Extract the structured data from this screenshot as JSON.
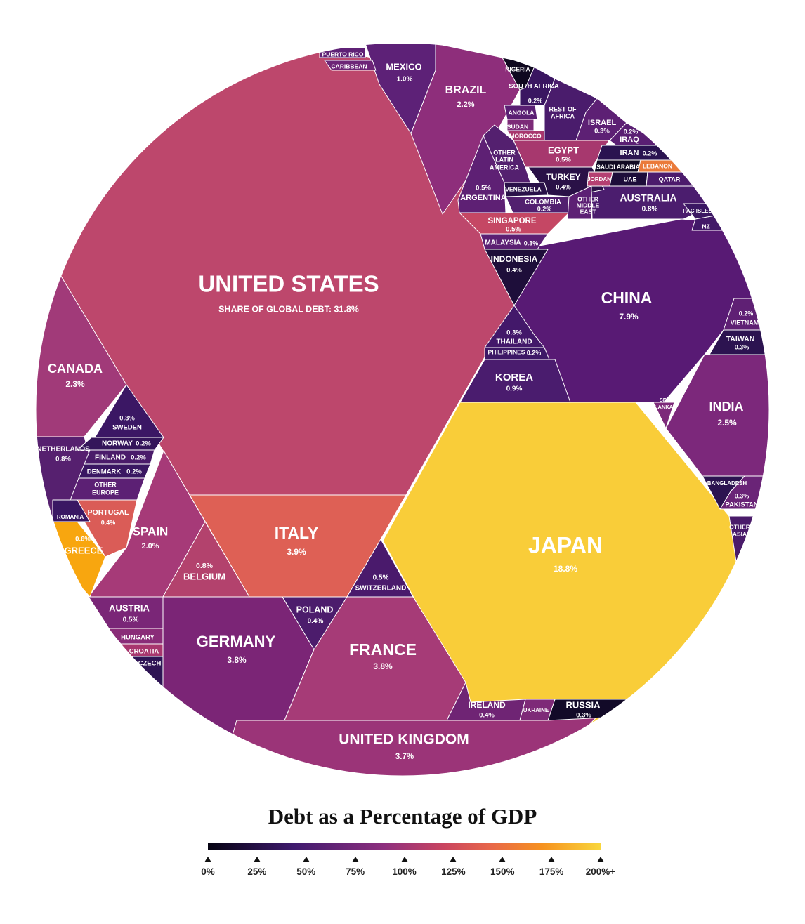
{
  "chart_data": {
    "type": "voronoi_treemap",
    "title": "Debt as a Percentage of GDP",
    "size_measure": "Share of global debt",
    "color_measure": "Debt as a percentage of GDP",
    "legend": {
      "ticks": [
        "0%",
        "25%",
        "50%",
        "75%",
        "100%",
        "125%",
        "150%",
        "175%",
        "200%+"
      ],
      "colors": [
        "#050312",
        "#2f1656",
        "#58207a",
        "#8a2e7e",
        "#b33d6f",
        "#d5544f",
        "#ee7a35",
        "#f7a626",
        "#f9d63c"
      ]
    },
    "cells": [
      {
        "key": "us",
        "label": "UNITED STATES",
        "sublabel": "SHARE OF GLOBAL DEBT: 31.8%",
        "value": 31.8,
        "color": "#bd476c"
      },
      {
        "key": "jp",
        "label": "JAPAN",
        "value_label": "18.8%",
        "value": 18.8,
        "color": "#f9cd39"
      },
      {
        "key": "cn",
        "label": "CHINA",
        "value_label": "7.9%",
        "value": 7.9,
        "color": "#581a74"
      },
      {
        "key": "it",
        "label": "ITALY",
        "value_label": "3.9%",
        "value": 3.9,
        "color": "#de6055"
      },
      {
        "key": "de",
        "label": "GERMANY",
        "value_label": "3.8%",
        "value": 3.8,
        "color": "#7b2576"
      },
      {
        "key": "fr",
        "label": "FRANCE",
        "value_label": "3.8%",
        "value": 3.8,
        "color": "#a63b77"
      },
      {
        "key": "uk",
        "label": "UNITED KINGDOM",
        "value_label": "3.7%",
        "value": 3.7,
        "color": "#9b3478"
      },
      {
        "key": "in",
        "label": "INDIA",
        "value_label": "2.5%",
        "value": 2.5,
        "color": "#7c287b"
      },
      {
        "key": "ca",
        "label": "CANADA",
        "value_label": "2.3%",
        "value": 2.3,
        "color": "#a13a79"
      },
      {
        "key": "br",
        "label": "BRAZIL",
        "value_label": "2.2%",
        "value": 2.2,
        "color": "#8e2e7b"
      },
      {
        "key": "es",
        "label": "SPAIN",
        "value_label": "2.0%",
        "value": 2.0,
        "color": "#a63a78"
      },
      {
        "key": "mx",
        "label": "MEXICO",
        "value_label": "1.0%",
        "value": 1.0,
        "color": "#5d2177"
      },
      {
        "key": "kr",
        "label": "KOREA",
        "value_label": "0.9%",
        "value": 0.9,
        "color": "#4a1c6e"
      },
      {
        "key": "au",
        "label": "AUSTRALIA",
        "value_label": "0.8%",
        "value": 0.8,
        "color": "#4b1d6e"
      },
      {
        "key": "nl",
        "label": "NETHERLANDS",
        "value_label": "0.8%",
        "value": 0.8,
        "color": "#56206f"
      },
      {
        "key": "be",
        "label": "BELGIUM",
        "value_label": "0.8%",
        "value": 0.8,
        "color": "#b3426d"
      },
      {
        "key": "ch",
        "label": "SWITZERLAND",
        "value_label": "0.5%",
        "value": 0.5,
        "color": "#4a1a6c"
      },
      {
        "key": "at",
        "label": "AUSTRIA",
        "value_label": "0.5%",
        "value": 0.5,
        "color": "#7a2677"
      },
      {
        "key": "sg",
        "label": "SINGAPORE",
        "value_label": "0.5%",
        "value": 0.5,
        "color": "#c54764"
      },
      {
        "key": "eg",
        "label": "EGYPT",
        "value_label": "0.5%",
        "value": 0.5,
        "color": "#a7386e"
      },
      {
        "key": "ar",
        "label": "ARGENTINA",
        "value_label": "0.5%",
        "value": 0.5,
        "color": "#5e2074"
      },
      {
        "key": "pl",
        "label": "POLAND",
        "value_label": "0.4%",
        "value": 0.4,
        "color": "#4c1c6c"
      },
      {
        "key": "ie",
        "label": "IRELAND",
        "value_label": "0.4%",
        "value": 0.4,
        "color": "#6f2474"
      },
      {
        "key": "tr",
        "label": "TURKEY",
        "value_label": "0.4%",
        "value": 0.4,
        "color": "#2a1147"
      },
      {
        "key": "id",
        "label": "INDONESIA",
        "value_label": "0.4%",
        "value": 0.4,
        "color": "#1e0e3a"
      },
      {
        "key": "pt",
        "label": "PORTUGAL",
        "value_label": "0.4%",
        "value": 0.4,
        "color": "#da5c57"
      },
      {
        "key": "ru",
        "label": "RUSSIA",
        "value_label": "0.3%",
        "value": 0.3,
        "color": "#120a28"
      },
      {
        "key": "se",
        "label": "SWEDEN",
        "value_label": "0.3%",
        "value": 0.3,
        "color": "#3b1764"
      },
      {
        "key": "my",
        "label": "MALAYSIA",
        "value_label": "0.3%",
        "value": 0.3,
        "color": "#5c2073"
      },
      {
        "key": "th",
        "label": "THAILAND",
        "value_label": "0.3%",
        "value": 0.3,
        "color": "#43186a"
      },
      {
        "key": "il",
        "label": "ISRAEL",
        "value_label": "0.3%",
        "value": 0.3,
        "color": "#5d2074"
      },
      {
        "key": "tw",
        "label": "TAIWAN",
        "value_label": "0.3%",
        "value": 0.3,
        "color": "#2c1350"
      },
      {
        "key": "pk",
        "label": "PAKISTAN",
        "value_label": "0.3%",
        "value": 0.3,
        "color": "#6a2477"
      },
      {
        "key": "co",
        "label": "COLOMBIA",
        "value_label": "0.2%",
        "value": 0.2,
        "color": "#52206f"
      },
      {
        "key": "za",
        "label": "SOUTH AFRICA",
        "value_label": "0.2%",
        "value": 0.2,
        "color": "#3a1661"
      },
      {
        "key": "iq",
        "label": "IRAQ",
        "value_label": "0.2%",
        "value": 0.2,
        "color": "#5a1f73"
      },
      {
        "key": "ir",
        "label": "IRAN",
        "value_label": "0.2%",
        "value": 0.2,
        "color": "#2a1350"
      },
      {
        "key": "no",
        "label": "NORWAY",
        "value_label": "0.2%",
        "value": 0.2,
        "color": "#34155a"
      },
      {
        "key": "fi",
        "label": "FINLAND",
        "value_label": "0.2%",
        "value": 0.2,
        "color": "#4a1b6a"
      },
      {
        "key": "dk",
        "label": "DENMARK",
        "value_label": "0.2%",
        "value": 0.2,
        "color": "#3a1762"
      },
      {
        "key": "ph",
        "label": "PHILIPPINES",
        "value_label": "0.2%",
        "value": 0.2,
        "color": "#3d1866"
      },
      {
        "key": "vn",
        "label": "VIETNAM",
        "value_label": "0.2%",
        "value": 0.2,
        "color": "#5f2074"
      },
      {
        "key": "gr",
        "label": "GREECE",
        "value_label": "0.6%",
        "value": 0.6,
        "color": "#f8a60f"
      },
      {
        "key": "pr",
        "label": "PUERTO RICO",
        "color": "#5f2176"
      },
      {
        "key": "cb",
        "label": "CARIBBEAN",
        "color": "#6d2577"
      },
      {
        "key": "ng",
        "label": "NIGERIA",
        "color": "#0f081f"
      },
      {
        "key": "ao",
        "label": "ANGOLA",
        "color": "#5a1f73"
      },
      {
        "key": "sd",
        "label": "SUDAN",
        "color": "#7c2a78"
      },
      {
        "key": "ma",
        "label": "MOROCCO",
        "color": "#a8376e"
      },
      {
        "key": "rafr",
        "label": "REST OF AFRICA",
        "color": "#4a1c6c"
      },
      {
        "key": "ola",
        "label": "OTHER LATIN AMERICA",
        "color": "#54206f"
      },
      {
        "key": "ve",
        "label": "VENEZUELA",
        "color": "#2a1149"
      },
      {
        "key": "sa",
        "label": "SAUDI ARABIA",
        "color": "#100922"
      },
      {
        "key": "lb",
        "label": "LEBANON",
        "color": "#ea7a3a"
      },
      {
        "key": "jo",
        "label": "JORDAN",
        "color": "#b54072"
      },
      {
        "key": "ae",
        "label": "UAE",
        "color": "#1d0d3a"
      },
      {
        "key": "qa",
        "label": "QATAR",
        "color": "#4c1b6c"
      },
      {
        "key": "ome",
        "label": "OTHER MIDDLE EAST",
        "color": "#5d2074"
      },
      {
        "key": "pac",
        "label": "PAC ISLES",
        "color": "#3a1762"
      },
      {
        "key": "nz",
        "label": "NZ",
        "color": "#421968"
      },
      {
        "key": "lk",
        "label": "SRI LANKA",
        "color": "#7d2a7a"
      },
      {
        "key": "bd",
        "label": "BANGLADESH",
        "color": "#2c1350"
      },
      {
        "key": "oas",
        "label": "OTHER ASIA",
        "color": "#4a1b6a"
      },
      {
        "key": "hu",
        "label": "HUNGARY",
        "color": "#8a2c78"
      },
      {
        "key": "hr",
        "label": "CROATIA",
        "color": "#a8366e"
      },
      {
        "key": "cz",
        "label": "CZECH",
        "color": "#2e1354"
      },
      {
        "key": "ro",
        "label": "ROMANIA",
        "color": "#3a1763"
      },
      {
        "key": "oeu",
        "label": "OTHER EUROPE",
        "color": "#5c2074"
      },
      {
        "key": "ua",
        "label": "UKRAINE",
        "color": "#7e2a78"
      }
    ]
  }
}
